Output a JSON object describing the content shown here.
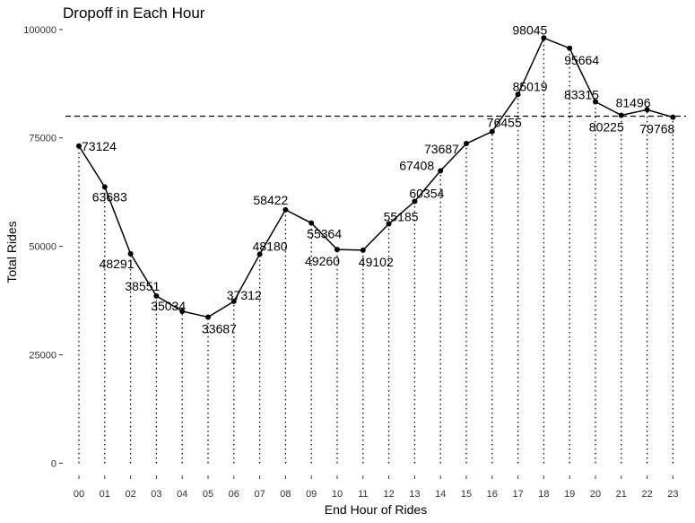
{
  "chart_data": {
    "type": "line",
    "title": "Dropoff in Each Hour",
    "xlabel": "End Hour of Rides",
    "ylabel": "Total Rides",
    "categories": [
      "00",
      "01",
      "02",
      "03",
      "04",
      "05",
      "06",
      "07",
      "08",
      "09",
      "10",
      "11",
      "12",
      "13",
      "14",
      "15",
      "16",
      "17",
      "18",
      "19",
      "20",
      "21",
      "22",
      "23"
    ],
    "values": [
      73124,
      63683,
      48291,
      38551,
      35034,
      33687,
      37312,
      48180,
      58422,
      55364,
      49260,
      49102,
      55185,
      60354,
      67408,
      73687,
      76455,
      85019,
      98045,
      95664,
      83315,
      80225,
      81496,
      79768
    ],
    "value_labels": [
      "73124",
      "63683",
      "48291",
      "38551",
      "35034",
      "33687",
      "37312",
      "48180",
      "58422",
      "55364",
      "49260",
      "49102",
      "55185",
      "60354",
      "67408",
      "73687",
      "76455",
      "85019",
      "98045",
      "95664",
      "83315",
      "80225",
      "81496",
      "79768"
    ],
    "yticks": [
      0,
      25000,
      50000,
      75000,
      100000
    ],
    "ytick_labels": [
      "0",
      "25000",
      "50000",
      "75000",
      "100000"
    ],
    "ylim": [
      -2000,
      101000
    ],
    "reference_line_y": 80000,
    "grid": false,
    "colors": {
      "line": "#000000",
      "point": "#000000",
      "drop_line": "#000000",
      "reference_line": "#000000",
      "text": "#000000",
      "tick_text": "#333333"
    }
  }
}
